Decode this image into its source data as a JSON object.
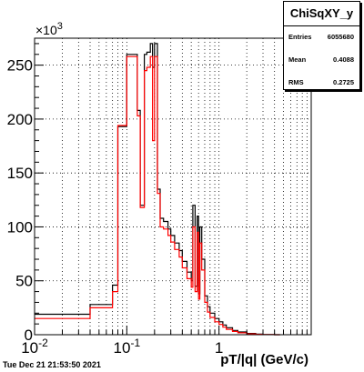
{
  "stats": {
    "title": "ChiSqXY_y",
    "rows": [
      {
        "label": "Entries",
        "value": "6055680"
      },
      {
        "label": "Mean",
        "value": "0.4088"
      },
      {
        "label": "RMS",
        "value": "0.2725"
      }
    ]
  },
  "footer": "Tue Dec 21 21:53:50 2021",
  "chart_data": {
    "type": "area",
    "title": "",
    "xlabel": "pT/|q| (GeV/c)",
    "ylabel": "",
    "xscale": "log",
    "xlim": [
      0.01,
      10
    ],
    "ylim": [
      0,
      275000
    ],
    "y_multiplier_label": "×10",
    "y_multiplier_exponent": "3",
    "x_tick_labels": [
      {
        "value": 0.01,
        "base": "10",
        "exp": "-2"
      },
      {
        "value": 0.1,
        "base": "10",
        "exp": "-1"
      },
      {
        "value": 1,
        "base": "1",
        "exp": ""
      }
    ],
    "y_ticks": [
      0,
      50000,
      100000,
      150000,
      200000,
      250000
    ],
    "y_tick_labels": [
      "0",
      "50",
      "100",
      "150",
      "200",
      "250"
    ],
    "grid": true,
    "series": [
      {
        "color": "#000000",
        "style": "step",
        "x": [
          0.01,
          0.04,
          0.055,
          0.07,
          0.08,
          0.1,
          0.13,
          0.14,
          0.155,
          0.165,
          0.18,
          0.19,
          0.2,
          0.215,
          0.23,
          0.25,
          0.28,
          0.3,
          0.33,
          0.37,
          0.4,
          0.45,
          0.5,
          0.52,
          0.55,
          0.58,
          0.6,
          0.62,
          0.65,
          0.7,
          0.75,
          0.8,
          0.9,
          1.0,
          1.1,
          1.2,
          1.4,
          1.6,
          2.0,
          2.5,
          3.0,
          4.0
        ],
        "y": [
          19000,
          28000,
          28000,
          46000,
          193000,
          260000,
          208000,
          120000,
          260000,
          262000,
          270000,
          248000,
          270000,
          135000,
          108000,
          105000,
          98000,
          92000,
          85000,
          78000,
          68000,
          58000,
          50000,
          120000,
          45000,
          110000,
          38000,
          100000,
          70000,
          36000,
          26000,
          20000,
          15000,
          12000,
          9000,
          6500,
          4000,
          2500,
          1200,
          500,
          150,
          0
        ]
      },
      {
        "color": "#ff0000",
        "style": "step",
        "x": [
          0.01,
          0.04,
          0.055,
          0.07,
          0.08,
          0.1,
          0.13,
          0.14,
          0.155,
          0.165,
          0.18,
          0.19,
          0.2,
          0.215,
          0.23,
          0.25,
          0.28,
          0.3,
          0.33,
          0.37,
          0.4,
          0.45,
          0.5,
          0.52,
          0.55,
          0.58,
          0.6,
          0.62,
          0.65,
          0.7,
          0.75,
          0.8,
          0.9,
          1.0,
          1.1,
          1.2,
          1.4,
          1.6,
          2.0,
          2.5,
          3.0,
          4.0
        ],
        "y": [
          15000,
          25000,
          25000,
          40000,
          194000,
          258000,
          203000,
          118000,
          245000,
          248000,
          258000,
          180000,
          258000,
          131000,
          100000,
          98000,
          92000,
          86000,
          79000,
          72000,
          62000,
          52000,
          44000,
          100000,
          40000,
          95000,
          33000,
          85000,
          60000,
          30000,
          21000,
          16000,
          12000,
          9500,
          7000,
          5000,
          3000,
          1800,
          800,
          300,
          100,
          0
        ]
      }
    ]
  }
}
